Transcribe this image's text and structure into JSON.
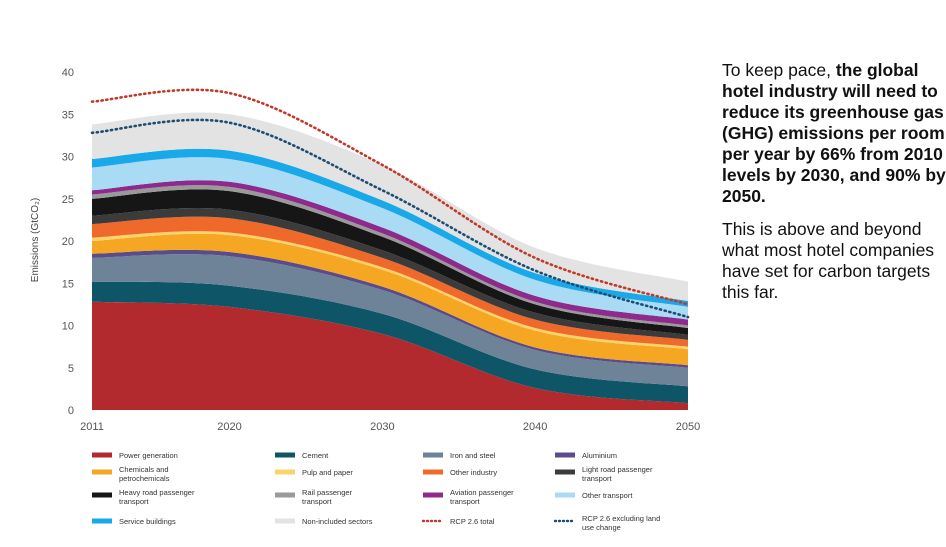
{
  "chart_data": {
    "type": "area",
    "stacked": true,
    "ylabel": "Emissions (GtCO₂)",
    "ylim": [
      0,
      40
    ],
    "yticks": [
      0,
      5,
      10,
      15,
      20,
      25,
      30,
      35,
      40
    ],
    "x": [
      2011,
      2020,
      2030,
      2040,
      2050
    ],
    "xticks": [
      2011,
      2020,
      2030,
      2040,
      2050
    ],
    "grid": false,
    "legend_position": "bottom",
    "series": [
      {
        "name": "Power generation",
        "color": "#b22a2e",
        "values": [
          12.8,
          12.2,
          9.0,
          2.6,
          0.8
        ]
      },
      {
        "name": "Cement",
        "color": "#0e5567",
        "values": [
          2.4,
          2.5,
          2.4,
          2.2,
          2.0
        ]
      },
      {
        "name": "Iron and steel",
        "color": "#6f8398",
        "values": [
          2.8,
          3.5,
          2.8,
          2.3,
          2.2
        ]
      },
      {
        "name": "Aluminium",
        "color": "#5a4b8a",
        "values": [
          0.5,
          0.5,
          0.4,
          0.3,
          0.3
        ]
      },
      {
        "name": "Chemicals and petrochemicals",
        "color": "#f5a623",
        "values": [
          1.5,
          2.0,
          2.0,
          2.0,
          1.9
        ]
      },
      {
        "name": "Pulp and paper",
        "color": "#fbd36b",
        "values": [
          0.4,
          0.3,
          0.3,
          0.3,
          0.3
        ]
      },
      {
        "name": "Other industry",
        "color": "#ef6a2a",
        "values": [
          1.6,
          1.7,
          1.1,
          1.0,
          0.8
        ]
      },
      {
        "name": "Light road passenger transport",
        "color": "#3b3b3b",
        "values": [
          1.0,
          1.0,
          0.9,
          0.8,
          0.6
        ]
      },
      {
        "name": "Heavy road passenger transport",
        "color": "#161616",
        "values": [
          2.0,
          2.2,
          1.6,
          1.0,
          0.8
        ]
      },
      {
        "name": "Rail passenger transport",
        "color": "#9a9a9a",
        "values": [
          0.5,
          0.5,
          0.4,
          0.3,
          0.3
        ]
      },
      {
        "name": "Aviation passenger transport",
        "color": "#8d2a8c",
        "values": [
          0.5,
          0.6,
          0.7,
          0.7,
          0.7
        ]
      },
      {
        "name": "Other transport",
        "color": "#a9dbf5",
        "values": [
          2.7,
          2.7,
          2.3,
          1.9,
          1.5
        ]
      },
      {
        "name": "Service buildings",
        "color": "#19a9e8",
        "values": [
          1.0,
          1.0,
          0.9,
          0.8,
          0.7
        ]
      },
      {
        "name": "Non-included sectors",
        "color": "#e3e3e3",
        "values": [
          4.1,
          4.3,
          4.2,
          3.0,
          2.3
        ]
      }
    ],
    "lines": [
      {
        "name": "RCP 2.6 total",
        "color": "#c0392b",
        "dash": "dotted",
        "values": [
          36.5,
          37.5,
          29.0,
          18.0,
          12.5
        ]
      },
      {
        "name": "RCP 2.6 excluding land use change",
        "color": "#1e4d73",
        "dash": "dotted",
        "values": [
          32.8,
          34.0,
          26.0,
          16.5,
          11.0
        ]
      }
    ]
  },
  "legend": [
    {
      "label": "Power generation",
      "color": "#b22a2e",
      "style": "solid"
    },
    {
      "label": "Cement",
      "color": "#0e5567",
      "style": "solid"
    },
    {
      "label": "Iron and steel",
      "color": "#6f8398",
      "style": "solid"
    },
    {
      "label": "Aluminium",
      "color": "#5a4b8a",
      "style": "solid"
    },
    {
      "label": "Chemicals and petrochemicals",
      "color": "#f5a623",
      "style": "solid"
    },
    {
      "label": "Pulp and paper",
      "color": "#fbd36b",
      "style": "solid"
    },
    {
      "label": "Other industry",
      "color": "#ef6a2a",
      "style": "solid"
    },
    {
      "label": "Light road passenger transport",
      "color": "#3b3b3b",
      "style": "solid"
    },
    {
      "label": "Heavy road passenger transport",
      "color": "#161616",
      "style": "solid"
    },
    {
      "label": "Rail passenger transport",
      "color": "#9a9a9a",
      "style": "solid"
    },
    {
      "label": "Aviation passenger transport",
      "color": "#8d2a8c",
      "style": "solid"
    },
    {
      "label": "Other transport",
      "color": "#a9dbf5",
      "style": "solid"
    },
    {
      "label": "Service buildings",
      "color": "#19a9e8",
      "style": "solid"
    },
    {
      "label": "Non-included sectors",
      "color": "#e3e3e3",
      "style": "solid"
    },
    {
      "label": "RCP 2.6 total",
      "color": "#c0392b",
      "style": "dotted"
    },
    {
      "label": "RCP 2.6 excluding land use change",
      "color": "#1e4d73",
      "style": "dotted"
    }
  ],
  "text_panel": {
    "lead_normal": "To keep pace, ",
    "lead_bold": "the global hotel industry will need to reduce its greenhouse gas (GHG) emissions per room per year by 66% from 2010 levels by 2030, and 90% by 2050.",
    "note": "This is above and beyond what most hotel companies have set for carbon targets this far."
  }
}
